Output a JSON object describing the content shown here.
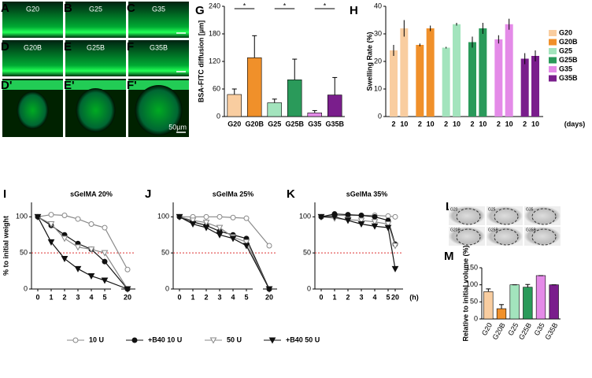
{
  "image_panels": [
    {
      "letter": "A",
      "label": "G20"
    },
    {
      "letter": "B",
      "label": "G25"
    },
    {
      "letter": "C",
      "label": "G35"
    },
    {
      "letter": "D",
      "label": "G20B"
    },
    {
      "letter": "E",
      "label": "G25B"
    },
    {
      "letter": "F",
      "label": "G35B"
    },
    {
      "letter": "D'"
    },
    {
      "letter": "E'"
    },
    {
      "letter": "F'",
      "scale": "50µm"
    }
  ],
  "panel_L": {
    "letter": "L",
    "labels": [
      "G20",
      "G25",
      "G35",
      "G20B",
      "G25B",
      "G35B"
    ]
  },
  "chart_data": [
    {
      "letter": "G",
      "type": "bar",
      "ylabel": "BSA-FITC diffusion [µm]",
      "categories": [
        "G20",
        "G20B",
        "G25",
        "G25B",
        "G35",
        "G35B"
      ],
      "values": [
        48,
        128,
        30,
        80,
        8,
        47
      ],
      "errors": [
        12,
        48,
        8,
        45,
        5,
        38
      ],
      "colors": [
        "#f9cda0",
        "#f0902a",
        "#a3e4bd",
        "#2a9a5a",
        "#e48be8",
        "#7a1e8c"
      ],
      "ylim": [
        0,
        240
      ],
      "yticks": [
        0,
        60,
        120,
        180,
        240
      ],
      "significance": [
        "*",
        "*",
        "*"
      ]
    },
    {
      "letter": "H",
      "type": "grouped_bar",
      "ylabel": "Swelling Rate (%)",
      "categories": [
        2,
        10
      ],
      "x_unit": "(days)",
      "ylim": [
        0,
        40
      ],
      "yticks": [
        0,
        10,
        20,
        30,
        40
      ],
      "legend": "right",
      "series": [
        {
          "name": "G20",
          "color": "#f9cda0",
          "values": [
            24,
            32
          ],
          "errors": [
            2,
            3
          ]
        },
        {
          "name": "G20B",
          "color": "#f0902a",
          "values": [
            26,
            32
          ],
          "errors": [
            0.5,
            1
          ]
        },
        {
          "name": "G25",
          "color": "#a3e4bd",
          "values": [
            25,
            33.5
          ],
          "errors": [
            0.3,
            0.5
          ]
        },
        {
          "name": "G25B",
          "color": "#2a9a5a",
          "values": [
            27,
            32
          ],
          "errors": [
            2,
            2
          ]
        },
        {
          "name": "G35",
          "color": "#e48be8",
          "values": [
            28,
            33.5
          ],
          "errors": [
            1.5,
            2
          ]
        },
        {
          "name": "G35B",
          "color": "#7a1e8c",
          "values": [
            21,
            22
          ],
          "errors": [
            2,
            2
          ]
        }
      ]
    },
    {
      "letter": "I",
      "type": "line",
      "title": "sGelMA 20%",
      "ylabel": "% to initial weight",
      "categories": [
        0,
        1,
        2,
        3,
        4,
        5,
        20
      ],
      "ylim": [
        0,
        120
      ],
      "yticks": [
        0,
        50,
        100
      ],
      "reference_line": 50,
      "series": [
        {
          "name": "10 U",
          "marker": "circle",
          "filled": false,
          "color": "#888888",
          "values": [
            100,
            103,
            102,
            97,
            90,
            85,
            27
          ]
        },
        {
          "name": "+B40 10 U",
          "marker": "circle",
          "filled": true,
          "color": "#111111",
          "values": [
            100,
            88,
            75,
            63,
            55,
            38,
            0
          ]
        },
        {
          "name": "50 U",
          "marker": "triangle",
          "filled": false,
          "color": "#888888",
          "values": [
            100,
            90,
            70,
            58,
            55,
            50,
            0
          ]
        },
        {
          "name": "+B40 50 U",
          "marker": "triangle",
          "filled": true,
          "color": "#111111",
          "values": [
            100,
            65,
            42,
            28,
            18,
            12,
            0
          ]
        }
      ]
    },
    {
      "letter": "J",
      "type": "line",
      "title": "sGelMa 25%",
      "categories": [
        0,
        1,
        2,
        3,
        4,
        5,
        20
      ],
      "ylim": [
        0,
        120
      ],
      "yticks": [
        0,
        50,
        100
      ],
      "reference_line": 50,
      "series": [
        {
          "marker": "circle",
          "filled": false,
          "color": "#888888",
          "values": [
            100,
            100,
            100,
            100,
            99,
            98,
            60
          ]
        },
        {
          "marker": "circle",
          "filled": true,
          "color": "#111111",
          "values": [
            100,
            93,
            88,
            80,
            75,
            70,
            0
          ]
        },
        {
          "marker": "triangle",
          "filled": false,
          "color": "#888888",
          "values": [
            100,
            95,
            92,
            85,
            72,
            65,
            0
          ]
        },
        {
          "marker": "triangle",
          "filled": true,
          "color": "#111111",
          "values": [
            100,
            90,
            85,
            75,
            70,
            60,
            0
          ]
        }
      ]
    },
    {
      "letter": "K",
      "type": "line",
      "title": "sGelMa 35%",
      "categories": [
        0,
        1,
        2,
        3,
        4,
        5,
        20
      ],
      "x_unit": "(h)",
      "ylim": [
        0,
        120
      ],
      "yticks": [
        0,
        50,
        100
      ],
      "reference_line": 50,
      "series": [
        {
          "marker": "circle",
          "filled": false,
          "color": "#888888",
          "values": [
            100,
            102,
            102,
            102,
            102,
            101,
            100
          ]
        },
        {
          "marker": "circle",
          "filled": true,
          "color": "#111111",
          "values": [
            100,
            104,
            103,
            102,
            100,
            95,
            62
          ]
        },
        {
          "marker": "triangle",
          "filled": false,
          "color": "#888888",
          "values": [
            100,
            98,
            96,
            95,
            93,
            90,
            60
          ]
        },
        {
          "marker": "triangle",
          "filled": true,
          "color": "#111111",
          "values": [
            100,
            100,
            95,
            90,
            87,
            85,
            28
          ]
        }
      ]
    },
    {
      "letter": "M",
      "type": "bar",
      "ylabel": "Relative to initial volume (%)",
      "categories": [
        "G20",
        "G20B",
        "G25",
        "G25B",
        "G35",
        "G35B"
      ],
      "values": [
        80,
        30,
        100,
        93,
        127,
        100
      ],
      "errors": [
        8,
        12,
        0,
        8,
        0,
        0
      ],
      "colors": [
        "#f9cda0",
        "#f0902a",
        "#a3e4bd",
        "#2a9a5a",
        "#e48be8",
        "#7a1e8c"
      ],
      "ylim": [
        0,
        150
      ],
      "yticks": [
        0,
        50,
        100,
        150
      ],
      "rotate_labels": true
    }
  ]
}
